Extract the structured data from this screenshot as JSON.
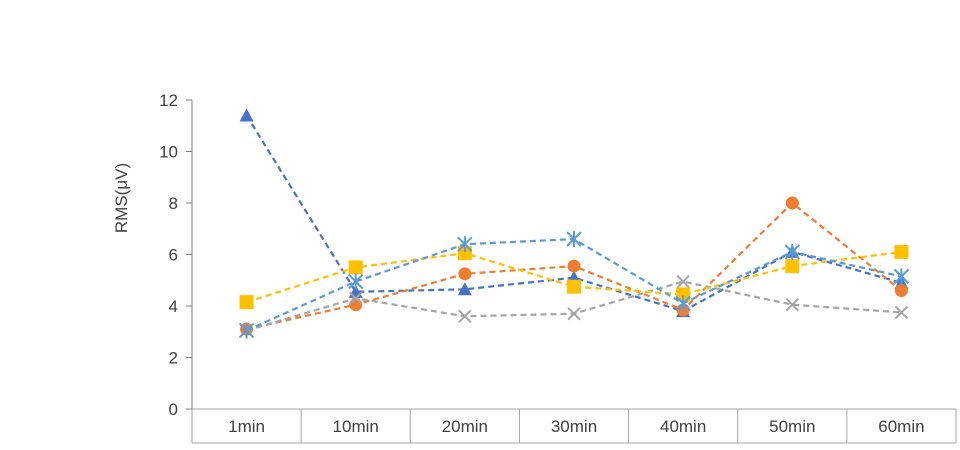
{
  "chart_data": {
    "type": "line",
    "ylabel": "RMS(μV)",
    "ylim": [
      0,
      12
    ],
    "yticks": [
      0,
      2,
      4,
      6,
      8,
      10,
      12
    ],
    "categories": [
      "1min",
      "10min",
      "20min",
      "30min",
      "40min",
      "50min",
      "60min"
    ],
    "grid": false,
    "table_style_x_axis": true,
    "series": [
      {
        "color": "#4472C4",
        "marker": "triangle",
        "values": [
          11.4,
          4.55,
          4.65,
          5.1,
          3.8,
          6.1,
          4.9
        ]
      },
      {
        "color": "#ED7D31",
        "marker": "circle",
        "values": [
          3.1,
          4.05,
          5.25,
          5.55,
          3.85,
          8.0,
          4.6
        ]
      },
      {
        "color": "#A5A5A5",
        "marker": "x",
        "values": [
          3.05,
          4.3,
          3.6,
          3.7,
          4.95,
          4.05,
          3.75
        ]
      },
      {
        "color": "#FFC000",
        "marker": "square",
        "values": [
          4.15,
          5.5,
          6.05,
          4.75,
          4.45,
          5.55,
          6.1
        ]
      },
      {
        "color": "#5B9BD5",
        "marker": "asterisk",
        "values": [
          3.05,
          4.95,
          6.4,
          6.6,
          4.1,
          6.1,
          5.15
        ]
      }
    ]
  }
}
